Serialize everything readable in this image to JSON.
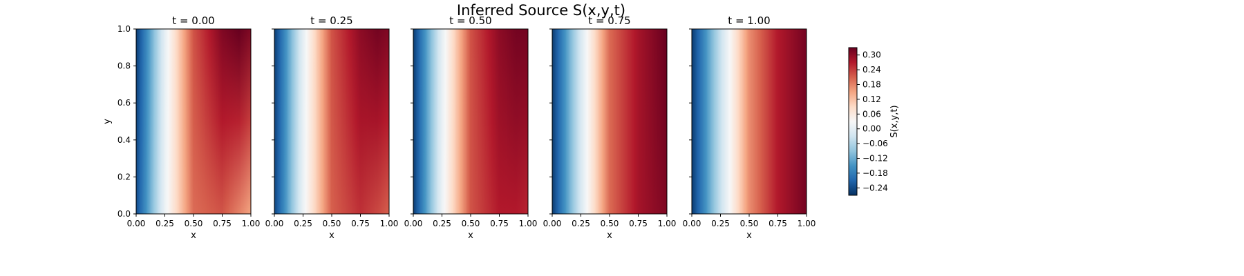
{
  "figure": {
    "suptitle": "Inferred Source S(x,y,t)"
  },
  "chart_data": {
    "type": "heatmap",
    "subtype": "filled-contour small multiples",
    "title": "Inferred Source S(x,y,t)",
    "xlabel": "x",
    "ylabel": "y",
    "xlim": [
      0.0,
      1.0
    ],
    "ylim": [
      0.0,
      1.0
    ],
    "x_ticks": [
      "0.00",
      "0.25",
      "0.50",
      "0.75",
      "1.00"
    ],
    "y_ticks": [
      "0.0",
      "0.2",
      "0.4",
      "0.6",
      "0.8",
      "1.0"
    ],
    "colormap": "RdBu_r",
    "colorbar": {
      "label": "S(x,y,t)",
      "range": [
        -0.27,
        0.33
      ],
      "ticks": [
        "-0.24",
        "-0.18",
        "-0.12",
        "-0.06",
        "0.00",
        "0.06",
        "0.12",
        "0.18",
        "0.24",
        "0.30"
      ]
    },
    "panels": [
      {
        "title": "t = 0.00",
        "t": 0.0,
        "profile_x": [
          0.0,
          0.25,
          0.5,
          0.75,
          0.9,
          1.0
        ],
        "s_at_y1": [
          -0.26,
          0.0,
          0.22,
          0.31,
          0.33,
          0.31
        ],
        "s_at_y0": [
          -0.24,
          0.01,
          0.2,
          0.22,
          0.18,
          0.15
        ]
      },
      {
        "title": "t = 0.25",
        "t": 0.25,
        "profile_x": [
          0.0,
          0.25,
          0.5,
          0.75,
          0.9,
          1.0
        ],
        "s_at_y1": [
          -0.26,
          0.0,
          0.22,
          0.3,
          0.32,
          0.31
        ],
        "s_at_y0": [
          -0.25,
          0.01,
          0.21,
          0.25,
          0.23,
          0.21
        ]
      },
      {
        "title": "t = 0.50",
        "t": 0.5,
        "profile_x": [
          0.0,
          0.25,
          0.5,
          0.75,
          0.9,
          1.0
        ],
        "s_at_y1": [
          -0.26,
          0.0,
          0.22,
          0.3,
          0.32,
          0.32
        ],
        "s_at_y0": [
          -0.26,
          0.01,
          0.22,
          0.27,
          0.27,
          0.26
        ]
      },
      {
        "title": "t = 0.75",
        "t": 0.75,
        "profile_x": [
          0.0,
          0.25,
          0.5,
          0.75,
          0.9,
          1.0
        ],
        "s_at_y1": [
          -0.26,
          -0.02,
          0.2,
          0.28,
          0.31,
          0.33
        ],
        "s_at_y0": [
          -0.26,
          -0.02,
          0.2,
          0.28,
          0.3,
          0.31
        ]
      },
      {
        "title": "t = 1.00",
        "t": 1.0,
        "profile_x": [
          0.0,
          0.25,
          0.5,
          0.75,
          0.9,
          1.0
        ],
        "s_at_y1": [
          -0.26,
          -0.04,
          0.17,
          0.27,
          0.3,
          0.32
        ],
        "s_at_y0": [
          -0.26,
          -0.04,
          0.17,
          0.27,
          0.3,
          0.32
        ]
      }
    ]
  }
}
